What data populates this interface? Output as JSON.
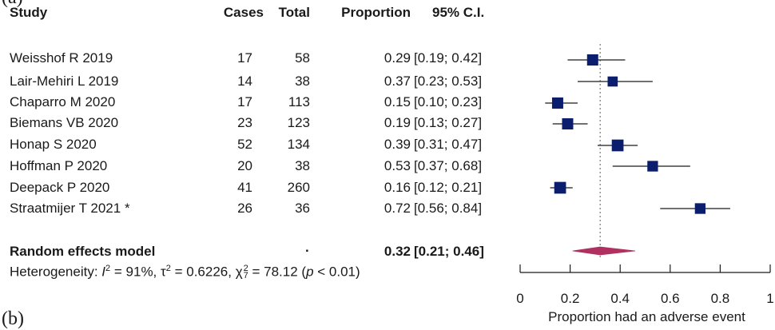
{
  "panel_labels": {
    "top": "(a)",
    "bottom": "(b)"
  },
  "headers": {
    "study": "Study",
    "cases": "Cases",
    "total": "Total",
    "proportion": "Proportion",
    "ci": "95% C.I."
  },
  "studies": [
    {
      "name": "Weisshof R  2019",
      "cases": "17",
      "total": "58",
      "prop": "0.29",
      "ci": "[0.19; 0.42]"
    },
    {
      "name": "Lair-Mehiri L 2019",
      "cases": "14",
      "total": "38",
      "prop": "0.37",
      "ci": "[0.23; 0.53]"
    },
    {
      "name": "Chaparro M  2020",
      "cases": "17",
      "total": "113",
      "prop": "0.15",
      "ci": "[0.10; 0.23]"
    },
    {
      "name": "Biemans VB  2020",
      "cases": "23",
      "total": "123",
      "prop": "0.19",
      "ci": "[0.13; 0.27]"
    },
    {
      "name": "Honap S 2020",
      "cases": "52",
      "total": "134",
      "prop": "0.39",
      "ci": "[0.31; 0.47]"
    },
    {
      "name": "Hoffman P 2020",
      "cases": "20",
      "total": "38",
      "prop": "0.53",
      "ci": "[0.37; 0.68]"
    },
    {
      "name": "Deepack P 2020",
      "cases": "41",
      "total": "260",
      "prop": "0.16",
      "ci": "[0.12; 0.21]"
    },
    {
      "name": "Straatmijer T 2021 *",
      "cases": "26",
      "total": "36",
      "prop": "0.72",
      "ci": "[0.56; 0.84]"
    }
  ],
  "summary": {
    "label": "Random effects model",
    "cases": ".",
    "prop": "0.32",
    "ci": "[0.21; 0.46]"
  },
  "heterogeneity": {
    "prefix": "Heterogeneity: ",
    "i2_sym": "I",
    "i2_val": " = 91%, ",
    "tau_sym": "τ",
    "tau_val": " = 0.6226, ",
    "chi_sym": "χ",
    "chi_sub": "7",
    "chi_val": " = 78.12 (",
    "p_sym": "p",
    "p_val": " < 0.01)"
  },
  "chart_data": {
    "type": "forest",
    "xlabel": "Proportion had an adverse event",
    "xlim": [
      0,
      1
    ],
    "ticks": [
      "0",
      "0.2",
      "0.4",
      "0.6",
      "0.8",
      "1"
    ],
    "tick_values": [
      0,
      0.2,
      0.4,
      0.6,
      0.8,
      1
    ],
    "reference_line": 0.32,
    "points": [
      {
        "study": "Weisshof R  2019",
        "est": 0.29,
        "lo": 0.19,
        "hi": 0.42,
        "weight": 1.0
      },
      {
        "study": "Lair-Mehiri L 2019",
        "est": 0.37,
        "lo": 0.23,
        "hi": 0.53,
        "weight": 0.9
      },
      {
        "study": "Chaparro M  2020",
        "est": 0.15,
        "lo": 0.1,
        "hi": 0.23,
        "weight": 1.0
      },
      {
        "study": "Biemans VB  2020",
        "est": 0.19,
        "lo": 0.13,
        "hi": 0.27,
        "weight": 1.0
      },
      {
        "study": "Honap S 2020",
        "est": 0.39,
        "lo": 0.31,
        "hi": 0.47,
        "weight": 1.05
      },
      {
        "study": "Hoffman P 2020",
        "est": 0.53,
        "lo": 0.37,
        "hi": 0.68,
        "weight": 0.95
      },
      {
        "study": "Deepack P 2020",
        "est": 0.16,
        "lo": 0.12,
        "hi": 0.21,
        "weight": 1.05
      },
      {
        "study": "Straatmijer T 2021 *",
        "est": 0.72,
        "lo": 0.56,
        "hi": 0.84,
        "weight": 0.95
      }
    ],
    "pooled": {
      "est": 0.32,
      "lo": 0.21,
      "hi": 0.46
    },
    "colors": {
      "square": "#0b1e6e",
      "diamond": "#b03060",
      "line": "#1a1a1a",
      "ref": "#777777"
    }
  }
}
